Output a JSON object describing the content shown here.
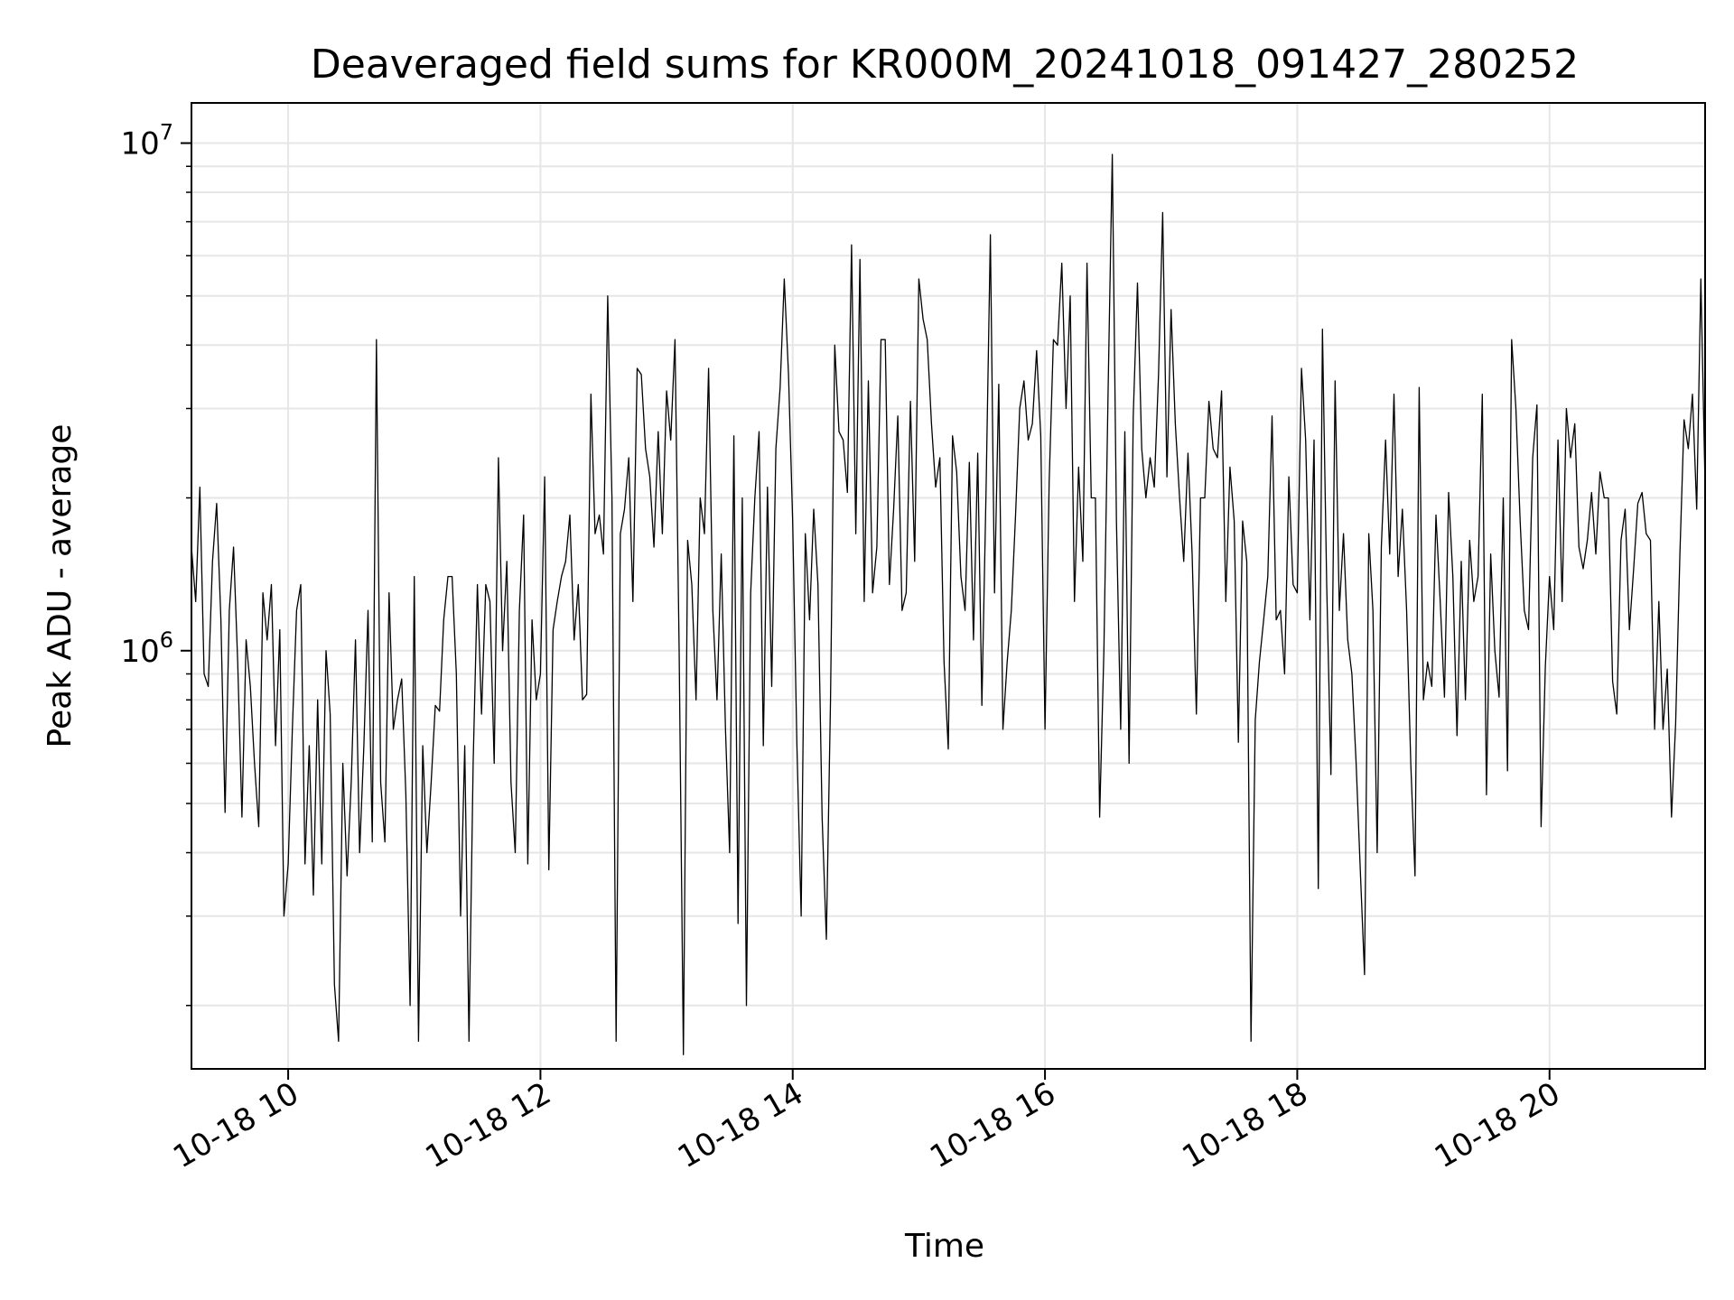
{
  "chart_data": {
    "type": "line",
    "title": "Deaveraged field sums for KR000M_20241018_091427_280252",
    "xlabel": "Time",
    "ylabel": "Peak ADU - average",
    "y_scale": "log",
    "xlim": [
      "2024-10-18 09:14",
      "2024-10-18 21:14"
    ],
    "ylim": [
      150000,
      12000000
    ],
    "grid": true,
    "x_ticks": [
      {
        "value": "2024-10-18 10:00",
        "label": "10-18 10"
      },
      {
        "value": "2024-10-18 12:00",
        "label": "10-18 12"
      },
      {
        "value": "2024-10-18 14:00",
        "label": "10-18 14"
      },
      {
        "value": "2024-10-18 16:00",
        "label": "10-18 16"
      },
      {
        "value": "2024-10-18 18:00",
        "label": "10-18 18"
      },
      {
        "value": "2024-10-18 20:00",
        "label": "10-18 20"
      }
    ],
    "y_ticks": [
      {
        "value": 1000000,
        "base": "10",
        "exp": "6"
      },
      {
        "value": 10000000,
        "base": "10",
        "exp": "7"
      }
    ],
    "line_color": "#000000",
    "series": [
      {
        "x": [
          "2024-10-18 09:14",
          "2024-10-18 09:16",
          "2024-10-18 09:18",
          "2024-10-18 09:20",
          "2024-10-18 09:22",
          "2024-10-18 09:24",
          "2024-10-18 09:26",
          "2024-10-18 09:28",
          "2024-10-18 09:30",
          "2024-10-18 09:32",
          "2024-10-18 09:34",
          "2024-10-18 09:36",
          "2024-10-18 09:38",
          "2024-10-18 09:40",
          "2024-10-18 09:42",
          "2024-10-18 09:44",
          "2024-10-18 09:46",
          "2024-10-18 09:48",
          "2024-10-18 09:50",
          "2024-10-18 09:52",
          "2024-10-18 09:54",
          "2024-10-18 09:56",
          "2024-10-18 09:58",
          "2024-10-18 10:00",
          "2024-10-18 10:02",
          "2024-10-18 10:04",
          "2024-10-18 10:06",
          "2024-10-18 10:08",
          "2024-10-18 10:10",
          "2024-10-18 10:12",
          "2024-10-18 10:14",
          "2024-10-18 10:16",
          "2024-10-18 10:18",
          "2024-10-18 10:20",
          "2024-10-18 10:22",
          "2024-10-18 10:24",
          "2024-10-18 10:26",
          "2024-10-18 10:28",
          "2024-10-18 10:30",
          "2024-10-18 10:32",
          "2024-10-18 10:34",
          "2024-10-18 10:36",
          "2024-10-18 10:38",
          "2024-10-18 10:40",
          "2024-10-18 10:42",
          "2024-10-18 10:44",
          "2024-10-18 10:46",
          "2024-10-18 10:48",
          "2024-10-18 10:50",
          "2024-10-18 10:52",
          "2024-10-18 10:54",
          "2024-10-18 10:56",
          "2024-10-18 10:58",
          "2024-10-18 11:00",
          "2024-10-18 11:02",
          "2024-10-18 11:04",
          "2024-10-18 11:06",
          "2024-10-18 11:08",
          "2024-10-18 11:10",
          "2024-10-18 11:12",
          "2024-10-18 11:14",
          "2024-10-18 11:16",
          "2024-10-18 11:18",
          "2024-10-18 11:20",
          "2024-10-18 11:22",
          "2024-10-18 11:24",
          "2024-10-18 11:26",
          "2024-10-18 11:28",
          "2024-10-18 11:30",
          "2024-10-18 11:32",
          "2024-10-18 11:34",
          "2024-10-18 11:36",
          "2024-10-18 11:38",
          "2024-10-18 11:40",
          "2024-10-18 11:42",
          "2024-10-18 11:44",
          "2024-10-18 11:46",
          "2024-10-18 11:48",
          "2024-10-18 11:50",
          "2024-10-18 11:52",
          "2024-10-18 11:54",
          "2024-10-18 11:56",
          "2024-10-18 11:58",
          "2024-10-18 12:00",
          "2024-10-18 12:02",
          "2024-10-18 12:04",
          "2024-10-18 12:06",
          "2024-10-18 12:08",
          "2024-10-18 12:10",
          "2024-10-18 12:12",
          "2024-10-18 12:14",
          "2024-10-18 12:16",
          "2024-10-18 12:18",
          "2024-10-18 12:20",
          "2024-10-18 12:22",
          "2024-10-18 12:24",
          "2024-10-18 12:26",
          "2024-10-18 12:28",
          "2024-10-18 12:30",
          "2024-10-18 12:32",
          "2024-10-18 12:34",
          "2024-10-18 12:36",
          "2024-10-18 12:38",
          "2024-10-18 12:40",
          "2024-10-18 12:42",
          "2024-10-18 12:44",
          "2024-10-18 12:46",
          "2024-10-18 12:48",
          "2024-10-18 12:50",
          "2024-10-18 12:52",
          "2024-10-18 12:54",
          "2024-10-18 12:56",
          "2024-10-18 12:58",
          "2024-10-18 13:00",
          "2024-10-18 13:02",
          "2024-10-18 13:04",
          "2024-10-18 13:06",
          "2024-10-18 13:08",
          "2024-10-18 13:10",
          "2024-10-18 13:12",
          "2024-10-18 13:14",
          "2024-10-18 13:16",
          "2024-10-18 13:18",
          "2024-10-18 13:20",
          "2024-10-18 13:22",
          "2024-10-18 13:24",
          "2024-10-18 13:26",
          "2024-10-18 13:28",
          "2024-10-18 13:30",
          "2024-10-18 13:32",
          "2024-10-18 13:34",
          "2024-10-18 13:36",
          "2024-10-18 13:38",
          "2024-10-18 13:40",
          "2024-10-18 13:42",
          "2024-10-18 13:44",
          "2024-10-18 13:46",
          "2024-10-18 13:48",
          "2024-10-18 13:50",
          "2024-10-18 13:52",
          "2024-10-18 13:54",
          "2024-10-18 13:56",
          "2024-10-18 13:58",
          "2024-10-18 14:00",
          "2024-10-18 14:02",
          "2024-10-18 14:04",
          "2024-10-18 14:06",
          "2024-10-18 14:08",
          "2024-10-18 14:10",
          "2024-10-18 14:12",
          "2024-10-18 14:14",
          "2024-10-18 14:16",
          "2024-10-18 14:18",
          "2024-10-18 14:20",
          "2024-10-18 14:22",
          "2024-10-18 14:24",
          "2024-10-18 14:26",
          "2024-10-18 14:28",
          "2024-10-18 14:30",
          "2024-10-18 14:32",
          "2024-10-18 14:34",
          "2024-10-18 14:36",
          "2024-10-18 14:38",
          "2024-10-18 14:40",
          "2024-10-18 14:42",
          "2024-10-18 14:44",
          "2024-10-18 14:46",
          "2024-10-18 14:48",
          "2024-10-18 14:50",
          "2024-10-18 14:52",
          "2024-10-18 14:54",
          "2024-10-18 14:56",
          "2024-10-18 14:58",
          "2024-10-18 15:00",
          "2024-10-18 15:02",
          "2024-10-18 15:04",
          "2024-10-18 15:06",
          "2024-10-18 15:08",
          "2024-10-18 15:10",
          "2024-10-18 15:12",
          "2024-10-18 15:14",
          "2024-10-18 15:16",
          "2024-10-18 15:18",
          "2024-10-18 15:20",
          "2024-10-18 15:22",
          "2024-10-18 15:24",
          "2024-10-18 15:26",
          "2024-10-18 15:28",
          "2024-10-18 15:30",
          "2024-10-18 15:32",
          "2024-10-18 15:34",
          "2024-10-18 15:36",
          "2024-10-18 15:38",
          "2024-10-18 15:40",
          "2024-10-18 15:42",
          "2024-10-18 15:44",
          "2024-10-18 15:46",
          "2024-10-18 15:48",
          "2024-10-18 15:50",
          "2024-10-18 15:52",
          "2024-10-18 15:54",
          "2024-10-18 15:56",
          "2024-10-18 15:58",
          "2024-10-18 16:00",
          "2024-10-18 16:02",
          "2024-10-18 16:04",
          "2024-10-18 16:06",
          "2024-10-18 16:08",
          "2024-10-18 16:10",
          "2024-10-18 16:12",
          "2024-10-18 16:14",
          "2024-10-18 16:16",
          "2024-10-18 16:18",
          "2024-10-18 16:20",
          "2024-10-18 16:22",
          "2024-10-18 16:24",
          "2024-10-18 16:26",
          "2024-10-18 16:28",
          "2024-10-18 16:30",
          "2024-10-18 16:32",
          "2024-10-18 16:34",
          "2024-10-18 16:36",
          "2024-10-18 16:38",
          "2024-10-18 16:40",
          "2024-10-18 16:42",
          "2024-10-18 16:44",
          "2024-10-18 16:46",
          "2024-10-18 16:48",
          "2024-10-18 16:50",
          "2024-10-18 16:52",
          "2024-10-18 16:54",
          "2024-10-18 16:56",
          "2024-10-18 16:58",
          "2024-10-18 17:00",
          "2024-10-18 17:02",
          "2024-10-18 17:04",
          "2024-10-18 17:06",
          "2024-10-18 17:08",
          "2024-10-18 17:10",
          "2024-10-18 17:12",
          "2024-10-18 17:14",
          "2024-10-18 17:16",
          "2024-10-18 17:18",
          "2024-10-18 17:20",
          "2024-10-18 17:22",
          "2024-10-18 17:24",
          "2024-10-18 17:26",
          "2024-10-18 17:28",
          "2024-10-18 17:30",
          "2024-10-18 17:32",
          "2024-10-18 17:34",
          "2024-10-18 17:36",
          "2024-10-18 17:38",
          "2024-10-18 17:40",
          "2024-10-18 17:42",
          "2024-10-18 17:44",
          "2024-10-18 17:46",
          "2024-10-18 17:48",
          "2024-10-18 17:50",
          "2024-10-18 17:52",
          "2024-10-18 17:54",
          "2024-10-18 17:56",
          "2024-10-18 17:58",
          "2024-10-18 18:00",
          "2024-10-18 18:02",
          "2024-10-18 18:04",
          "2024-10-18 18:06",
          "2024-10-18 18:08",
          "2024-10-18 18:10",
          "2024-10-18 18:12",
          "2024-10-18 18:14",
          "2024-10-18 18:16",
          "2024-10-18 18:18",
          "2024-10-18 18:20",
          "2024-10-18 18:22",
          "2024-10-18 18:24",
          "2024-10-18 18:26",
          "2024-10-18 18:28",
          "2024-10-18 18:30",
          "2024-10-18 18:32",
          "2024-10-18 18:34",
          "2024-10-18 18:36",
          "2024-10-18 18:38",
          "2024-10-18 18:40",
          "2024-10-18 18:42",
          "2024-10-18 18:44",
          "2024-10-18 18:46",
          "2024-10-18 18:48",
          "2024-10-18 18:50",
          "2024-10-18 18:52",
          "2024-10-18 18:54",
          "2024-10-18 18:56",
          "2024-10-18 18:58",
          "2024-10-18 19:00",
          "2024-10-18 19:02",
          "2024-10-18 19:04",
          "2024-10-18 19:06",
          "2024-10-18 19:08",
          "2024-10-18 19:10",
          "2024-10-18 19:12",
          "2024-10-18 19:14",
          "2024-10-18 19:16",
          "2024-10-18 19:18",
          "2024-10-18 19:20",
          "2024-10-18 19:22",
          "2024-10-18 19:24",
          "2024-10-18 19:26",
          "2024-10-18 19:28",
          "2024-10-18 19:30",
          "2024-10-18 19:32",
          "2024-10-18 19:34",
          "2024-10-18 19:36",
          "2024-10-18 19:38",
          "2024-10-18 19:40",
          "2024-10-18 19:42",
          "2024-10-18 19:44",
          "2024-10-18 19:46",
          "2024-10-18 19:48",
          "2024-10-18 19:50",
          "2024-10-18 19:52",
          "2024-10-18 19:54",
          "2024-10-18 19:56",
          "2024-10-18 19:58",
          "2024-10-18 20:00",
          "2024-10-18 20:02",
          "2024-10-18 20:04",
          "2024-10-18 20:06",
          "2024-10-18 20:08",
          "2024-10-18 20:10",
          "2024-10-18 20:12",
          "2024-10-18 20:14",
          "2024-10-18 20:16",
          "2024-10-18 20:18",
          "2024-10-18 20:20",
          "2024-10-18 20:22",
          "2024-10-18 20:24",
          "2024-10-18 20:26",
          "2024-10-18 20:28",
          "2024-10-18 20:30",
          "2024-10-18 20:32",
          "2024-10-18 20:34",
          "2024-10-18 20:36",
          "2024-10-18 20:38",
          "2024-10-18 20:40",
          "2024-10-18 20:42",
          "2024-10-18 20:44",
          "2024-10-18 20:46",
          "2024-10-18 20:48",
          "2024-10-18 20:50",
          "2024-10-18 20:52",
          "2024-10-18 20:54",
          "2024-10-18 20:56",
          "2024-10-18 20:58",
          "2024-10-18 21:00",
          "2024-10-18 21:02",
          "2024-10-18 21:04",
          "2024-10-18 21:06",
          "2024-10-18 21:08",
          "2024-10-18 21:10",
          "2024-10-18 21:12",
          "2024-10-18 21:14"
        ],
        "y": [
          1600000,
          1250000,
          2100000,
          900000,
          850000,
          1500000,
          1950000,
          1150000,
          480000,
          1200000,
          1600000,
          950000,
          470000,
          1050000,
          850000,
          600000,
          450000,
          1300000,
          1050000,
          1350000,
          650000,
          1100000,
          300000,
          380000,
          700000,
          1200000,
          1350000,
          380000,
          650000,
          330000,
          800000,
          380000,
          1000000,
          750000,
          220000,
          170000,
          600000,
          360000,
          550000,
          1050000,
          400000,
          650000,
          1200000,
          420000,
          4100000,
          550000,
          420000,
          1300000,
          700000,
          800000,
          880000,
          520000,
          200000,
          1400000,
          170000,
          650000,
          400000,
          550000,
          780000,
          760000,
          1150000,
          1400000,
          1400000,
          900000,
          300000,
          650000,
          170000,
          600000,
          1350000,
          750000,
          1350000,
          1250000,
          600000,
          2400000,
          1000000,
          1500000,
          550000,
          400000,
          1200000,
          1850000,
          380000,
          1150000,
          800000,
          900000,
          2200000,
          370000,
          1100000,
          1250000,
          1400000,
          1500000,
          1850000,
          1050000,
          1350000,
          800000,
          820000,
          3200000,
          1700000,
          1850000,
          1550000,
          5000000,
          2000000,
          170000,
          1700000,
          1900000,
          2400000,
          1250000,
          3600000,
          3500000,
          2500000,
          2200000,
          1600000,
          2700000,
          1700000,
          3250000,
          2600000,
          4100000,
          1000000,
          160000,
          1650000,
          1350000,
          800000,
          2000000,
          1700000,
          3600000,
          1200000,
          800000,
          1550000,
          700000,
          400000,
          2650000,
          290000,
          2000000,
          200000,
          1300000,
          2000000,
          2700000,
          650000,
          2100000,
          850000,
          2500000,
          3300000,
          5400000,
          3500000,
          1800000,
          650000,
          300000,
          1700000,
          1150000,
          1900000,
          1350000,
          470000,
          270000,
          800000,
          4000000,
          2700000,
          2600000,
          2050000,
          6300000,
          1700000,
          5900000,
          1250000,
          3400000,
          1300000,
          1600000,
          4100000,
          4100000,
          1350000,
          1900000,
          2900000,
          1200000,
          1300000,
          3100000,
          1500000,
          5400000,
          4500000,
          4100000,
          2800000,
          2100000,
          2400000,
          950000,
          640000,
          2650000,
          2250000,
          1400000,
          1200000,
          2350000,
          1050000,
          2450000,
          780000,
          2100000,
          6600000,
          1300000,
          3350000,
          700000,
          950000,
          1200000,
          1850000,
          3000000,
          3400000,
          2600000,
          2800000,
          3900000,
          2650000,
          700000,
          2150000,
          4100000,
          4000000,
          5800000,
          3000000,
          5000000,
          1250000,
          2300000,
          1500000,
          5800000,
          2000000,
          2000000,
          470000,
          1000000,
          3200000,
          9500000,
          1800000,
          700000,
          2700000,
          600000,
          2900000,
          5300000,
          2500000,
          2000000,
          2400000,
          2100000,
          3500000,
          7300000,
          2200000,
          4700000,
          2800000,
          2000000,
          1500000,
          2450000,
          1550000,
          750000,
          2000000,
          2000000,
          3100000,
          2500000,
          2400000,
          3250000,
          1250000,
          2300000,
          1800000,
          660000,
          1800000,
          1500000,
          170000,
          730000,
          950000,
          1150000,
          1400000,
          2900000,
          1150000,
          1200000,
          900000,
          2200000,
          1350000,
          1300000,
          3600000,
          2600000,
          1150000,
          2600000,
          340000,
          4300000,
          1350000,
          570000,
          3400000,
          1200000,
          1700000,
          1050000,
          900000,
          600000,
          370000,
          230000,
          1700000,
          1200000,
          400000,
          1600000,
          2600000,
          1550000,
          3200000,
          1400000,
          1900000,
          1200000,
          600000,
          360000,
          3300000,
          800000,
          950000,
          850000,
          1850000,
          1250000,
          810000,
          2050000,
          1400000,
          680000,
          1500000,
          800000,
          1650000,
          1250000,
          1400000,
          3200000,
          520000,
          1550000,
          1000000,
          810000,
          2000000,
          580000,
          4100000,
          3000000,
          1800000,
          1200000,
          1100000,
          2400000,
          3050000,
          450000,
          930000,
          1400000,
          1100000,
          2600000,
          1250000,
          3000000,
          2400000,
          2800000,
          1600000,
          1450000,
          1650000,
          2050000,
          1550000,
          2250000,
          2000000,
          2000000,
          870000,
          750000,
          1650000,
          1900000,
          1100000,
          1450000,
          1950000,
          2050000,
          1700000,
          1650000,
          700000,
          1250000,
          700000,
          920000,
          470000,
          720000,
          1550000,
          2850000,
          2500000,
          3200000,
          1900000,
          5400000,
          2100000
        ]
      }
    ]
  }
}
